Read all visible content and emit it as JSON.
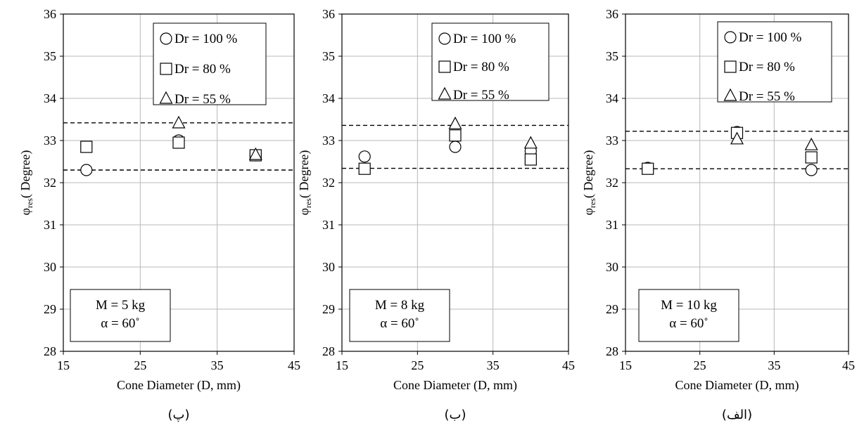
{
  "chart_data": [
    {
      "type": "scatter",
      "panel_label": "(پ)",
      "xlabel": "Cone Diameter (D, mm)",
      "ylabel_main": "φ",
      "ylabel_sub": "res",
      "ylabel_rest": "( Degree)",
      "xlim": [
        15,
        45
      ],
      "ylim": [
        28,
        36
      ],
      "xticks": [
        "15",
        "25",
        "35",
        "45"
      ],
      "yticks": [
        "28",
        "29",
        "30",
        "31",
        "32",
        "33",
        "34",
        "35",
        "36"
      ],
      "grid": true,
      "legend": [
        "Dr = 100 %",
        "Dr = 80 %",
        "Dr = 55 %"
      ],
      "series": [
        {
          "name": "Dr = 100 %",
          "marker": "circle",
          "x": [
            18,
            30,
            40
          ],
          "y": [
            32.3,
            33.0,
            32.65
          ]
        },
        {
          "name": "Dr = 80 %",
          "marker": "square",
          "x": [
            18,
            30,
            40
          ],
          "y": [
            32.85,
            32.95,
            32.65
          ]
        },
        {
          "name": "Dr = 55 %",
          "marker": "triangle",
          "x": [
            30,
            40
          ],
          "y": [
            33.4,
            32.65
          ]
        }
      ],
      "bounds": [
        33.42,
        32.3
      ],
      "info": [
        "M = 5 kg",
        "α = 60˚"
      ]
    },
    {
      "type": "scatter",
      "panel_label": "(ب)",
      "xlabel": "Cone Diameter (D, mm)",
      "ylabel_main": "φ",
      "ylabel_sub": "res",
      "ylabel_rest": "( Degree)",
      "xlim": [
        15,
        45
      ],
      "ylim": [
        28,
        36
      ],
      "xticks": [
        "15",
        "25",
        "35",
        "45"
      ],
      "yticks": [
        "28",
        "29",
        "30",
        "31",
        "32",
        "33",
        "34",
        "35",
        "36"
      ],
      "grid": true,
      "legend": [
        "Dr = 100 %",
        "Dr = 80 %",
        "Dr = 55 %"
      ],
      "series": [
        {
          "name": "Dr = 100 %",
          "marker": "circle",
          "x": [
            18,
            30,
            40
          ],
          "y": [
            32.62,
            32.85,
            32.75
          ]
        },
        {
          "name": "Dr = 80 %",
          "marker": "square",
          "x": [
            18,
            30,
            40
          ],
          "y": [
            32.33,
            33.12,
            32.55
          ]
        },
        {
          "name": "Dr = 55 %",
          "marker": "triangle",
          "x": [
            30,
            40
          ],
          "y": [
            33.38,
            32.92
          ]
        }
      ],
      "bounds": [
        33.36,
        32.34
      ],
      "info": [
        "M = 8 kg",
        "α = 60˚"
      ]
    },
    {
      "type": "scatter",
      "panel_label": "(الف)",
      "xlabel": "Cone Diameter (D, mm)",
      "ylabel_main": "φ",
      "ylabel_sub": "res",
      "ylabel_rest": "( Degree)",
      "xlim": [
        15,
        45
      ],
      "ylim": [
        28,
        36
      ],
      "xticks": [
        "15",
        "25",
        "35",
        "45"
      ],
      "yticks": [
        "28",
        "29",
        "30",
        "31",
        "32",
        "33",
        "34",
        "35",
        "36"
      ],
      "grid": true,
      "legend": [
        "Dr = 100 %",
        "Dr = 80 %",
        "Dr = 55 %"
      ],
      "series": [
        {
          "name": "Dr = 100 %",
          "marker": "circle",
          "x": [
            18,
            30,
            40
          ],
          "y": [
            32.35,
            33.2,
            32.3
          ]
        },
        {
          "name": "Dr = 80 %",
          "marker": "square",
          "x": [
            18,
            30,
            40
          ],
          "y": [
            32.33,
            33.18,
            32.6
          ]
        },
        {
          "name": "Dr = 55 %",
          "marker": "triangle",
          "x": [
            30,
            40
          ],
          "y": [
            33.02,
            32.88
          ]
        }
      ],
      "bounds": [
        33.22,
        32.33
      ],
      "info": [
        "M = 10 kg",
        "α = 60˚"
      ]
    }
  ]
}
